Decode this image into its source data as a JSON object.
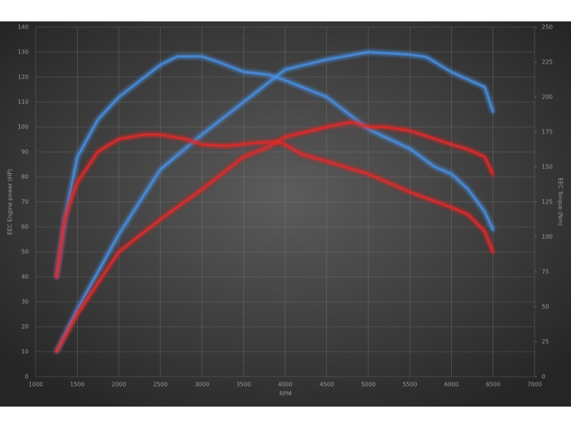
{
  "chart_data": {
    "type": "line",
    "xlabel": "RPM",
    "ylabel": "EEC Engine power (HP)",
    "y2label": "EEC Torque (Nm)",
    "xlim": [
      1000,
      7000
    ],
    "xticks": [
      1000,
      1500,
      2000,
      2500,
      3000,
      3500,
      4000,
      4500,
      5000,
      5500,
      6000,
      6500,
      7000
    ],
    "ylim": [
      0,
      140
    ],
    "yticks": [
      0,
      10,
      20,
      30,
      40,
      50,
      60,
      70,
      80,
      90,
      100,
      110,
      120,
      130,
      140
    ],
    "y2lim": [
      0,
      250
    ],
    "y2ticks": [
      0,
      25,
      50,
      75,
      100,
      125,
      150,
      175,
      200,
      225,
      250
    ],
    "grid": true,
    "series": [
      {
        "color": "#4a8fe0",
        "axis": "y2",
        "x": [
          1250,
          1350,
          1500,
          1750,
          2000,
          2500,
          2700,
          3000,
          3200,
          3500,
          3800,
          4000,
          4500,
          5000,
          5500,
          5800,
          6000,
          6200,
          6400,
          6500
        ],
        "values": [
          71,
          113,
          157,
          184,
          200,
          223,
          229,
          229,
          225,
          218,
          216,
          212,
          200,
          177,
          163,
          150,
          145,
          134,
          118,
          105
        ]
      },
      {
        "color": "#4a8fe0",
        "x": [
          1250,
          1500,
          2000,
          2500,
          3000,
          3500,
          4000,
          4500,
          5000,
          5500,
          5700,
          6000,
          6400,
          6500
        ],
        "values": [
          10,
          27,
          57,
          83,
          97,
          110,
          123,
          127,
          130,
          129,
          128,
          122,
          116,
          106
        ]
      },
      {
        "color": "#e02a2a",
        "axis": "y2",
        "x": [
          1250,
          1350,
          1500,
          1750,
          2000,
          2300,
          2500,
          2800,
          3000,
          3300,
          3600,
          3900,
          4000,
          4200,
          4500,
          5000,
          5500,
          6000,
          6200,
          6400,
          6500
        ],
        "values": [
          71,
          113,
          139,
          161,
          170,
          173,
          173,
          170,
          166,
          165,
          167,
          168,
          166,
          159,
          154,
          145,
          132,
          121,
          116,
          104,
          89
        ]
      },
      {
        "color": "#e02a2a",
        "x": [
          1250,
          1500,
          2000,
          2500,
          3000,
          3500,
          3800,
          4000,
          4500,
          4800,
          5000,
          5200,
          5500,
          6000,
          6200,
          6400,
          6500
        ],
        "values": [
          10,
          25,
          50,
          63,
          75,
          88,
          92,
          96,
          100,
          102,
          100,
          100,
          98.5,
          93,
          91,
          88,
          81
        ]
      }
    ]
  }
}
